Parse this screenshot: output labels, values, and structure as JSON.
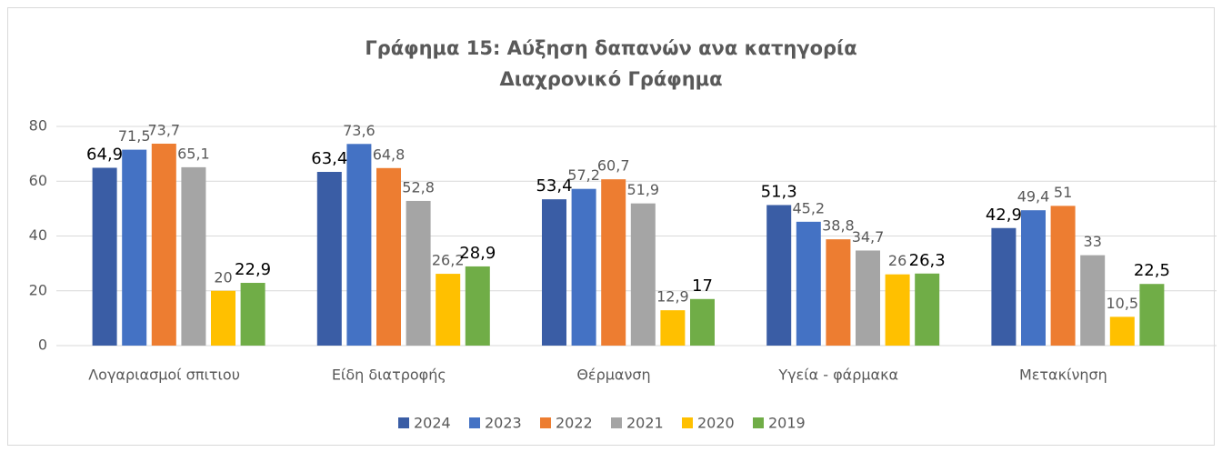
{
  "chart_data": {
    "type": "bar",
    "title": "Γράφημα 15: Αύξηση δαπανών ανα κατηγορία",
    "subtitle": "Διαχρονικό Γράφημα",
    "categories": [
      "Λογαριασμοί σπιτιου",
      "Είδη διατροφής",
      "Θέρμανση",
      "Υγεία - φάρμακα",
      "Μετακίνηση"
    ],
    "series": [
      {
        "name": "2024",
        "color": "#3a5da5",
        "values": [
          64.9,
          63.4,
          53.4,
          51.3,
          42.9
        ],
        "value_labels": [
          "64,9",
          "63,4",
          "53,4",
          "51,3",
          "42,9"
        ]
      },
      {
        "name": "2023",
        "color": "#4472c4",
        "values": [
          71.5,
          73.6,
          57.2,
          45.2,
          49.4
        ],
        "value_labels": [
          "71,5",
          "73,6",
          "57,2",
          "45,2",
          "49,4"
        ]
      },
      {
        "name": "2022",
        "color": "#ed7d31",
        "values": [
          73.7,
          64.8,
          60.7,
          38.8,
          51
        ],
        "value_labels": [
          "73,7",
          "64,8",
          "60,7",
          "38,8",
          "51"
        ]
      },
      {
        "name": "2021",
        "color": "#a5a5a5",
        "values": [
          65.1,
          52.8,
          51.9,
          34.7,
          33
        ],
        "value_labels": [
          "65,1",
          "52,8",
          "51,9",
          "34,7",
          "33"
        ]
      },
      {
        "name": "2020",
        "color": "#ffc000",
        "values": [
          20,
          26.2,
          12.9,
          26,
          10.5
        ],
        "value_labels": [
          "20",
          "26,2",
          "12,9",
          "26",
          "10,5"
        ]
      },
      {
        "name": "2019",
        "color": "#70ad47",
        "values": [
          22.9,
          28.9,
          17,
          26.3,
          22.5
        ],
        "value_labels": [
          "22,9",
          "28,9",
          "17",
          "26,3",
          "22,5"
        ]
      }
    ],
    "ylim": [
      0,
      80
    ],
    "yticks": [
      0,
      20,
      40,
      60,
      80
    ],
    "grid": true,
    "legend": "bottom"
  }
}
